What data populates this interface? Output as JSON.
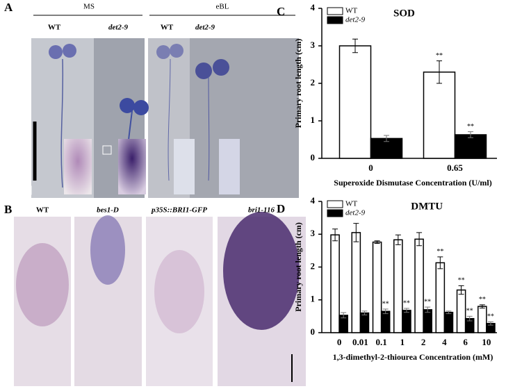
{
  "panel_a": {
    "label": "A",
    "groups": [
      "MS",
      "eBL"
    ],
    "columns": [
      "WT",
      "det2-9",
      "WT",
      "det2-9"
    ]
  },
  "panel_b": {
    "label": "B",
    "columns": [
      "WT",
      "bes1-D",
      "p35S::BRI1-GFP",
      "bri1-116"
    ]
  },
  "chart_data": [
    {
      "type": "bar",
      "panel": "C",
      "title": "SOD",
      "categories": [
        "0",
        "0.65"
      ],
      "series": [
        {
          "name": "WT",
          "color": "#ffffff",
          "values": [
            3.0,
            2.3
          ],
          "errors": [
            0.18,
            0.3
          ],
          "annotations": [
            null,
            "**"
          ]
        },
        {
          "name": "det2-9",
          "color": "#000000",
          "values": [
            0.53,
            0.63
          ],
          "errors": [
            0.08,
            0.08
          ],
          "annotations": [
            null,
            "**"
          ]
        }
      ],
      "ylabel": "Primary root length (cm)",
      "xlabel": "Superoxide Dismutase Concentration (U/ml)",
      "ylim": [
        0,
        4
      ],
      "yticks": [
        0,
        1,
        2,
        3,
        4
      ]
    },
    {
      "type": "bar",
      "panel": "D",
      "title": "DMTU",
      "categories": [
        "0",
        "0.01",
        "0.1",
        "1",
        "2",
        "4",
        "6",
        "10"
      ],
      "series": [
        {
          "name": "WT",
          "color": "#ffffff",
          "values": [
            2.98,
            3.05,
            2.76,
            2.83,
            2.85,
            2.13,
            1.3,
            0.8
          ],
          "errors": [
            0.18,
            0.28,
            0.04,
            0.15,
            0.2,
            0.18,
            0.13,
            0.05
          ],
          "annotations": [
            null,
            null,
            null,
            null,
            null,
            "**",
            "**",
            "**"
          ]
        },
        {
          "name": "det2-9",
          "color": "#000000",
          "values": [
            0.53,
            0.6,
            0.65,
            0.68,
            0.7,
            0.62,
            0.43,
            0.28
          ],
          "errors": [
            0.08,
            0.06,
            0.07,
            0.06,
            0.08,
            0.04,
            0.07,
            0.05
          ],
          "annotations": [
            null,
            null,
            "**",
            "**",
            "**",
            null,
            "**",
            "**"
          ]
        }
      ],
      "ylabel": "Primary root length (cm)",
      "xlabel": "1,3-dimethyl-2-thiourea Concentration (mM)",
      "ylim": [
        0,
        4
      ],
      "yticks": [
        0,
        1,
        2,
        3,
        4
      ]
    }
  ]
}
